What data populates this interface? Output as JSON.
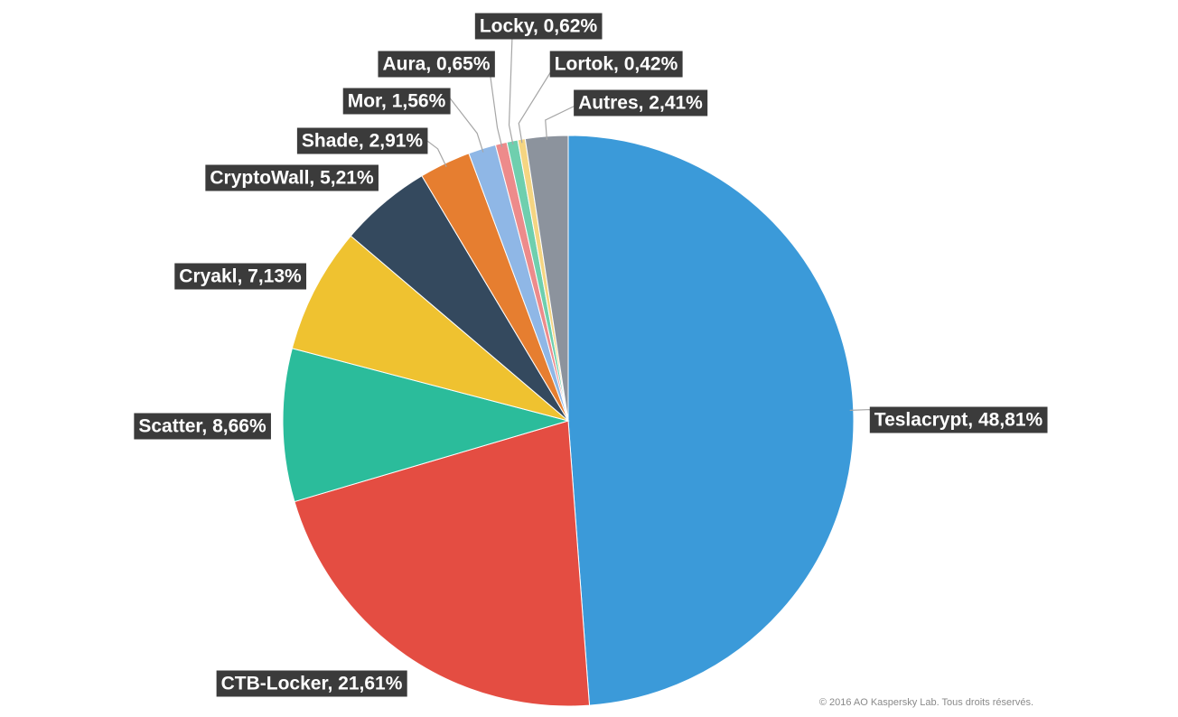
{
  "chart_data": {
    "type": "pie",
    "title": "",
    "start": "top",
    "direction": "clockwise",
    "slices": [
      {
        "name": "Teslacrypt",
        "value": 48.81,
        "label": "Teslacrypt, 48,81%",
        "color": "#3b9ad9"
      },
      {
        "name": "CTB-Locker",
        "value": 21.61,
        "label": "CTB-Locker, 21,61%",
        "color": "#e44d42"
      },
      {
        "name": "Scatter",
        "value": 8.66,
        "label": "Scatter, 8,66%",
        "color": "#2bbc9b"
      },
      {
        "name": "Cryakl",
        "value": 7.13,
        "label": "Cryakl, 7,13%",
        "color": "#efc230"
      },
      {
        "name": "CryptoWall",
        "value": 5.21,
        "label": "CryptoWall, 5,21%",
        "color": "#34495e"
      },
      {
        "name": "Shade",
        "value": 2.91,
        "label": "Shade, 2,91%",
        "color": "#e67e30"
      },
      {
        "name": "Mor",
        "value": 1.56,
        "label": "Mor, 1,56%",
        "color": "#8fb7e6"
      },
      {
        "name": "Aura",
        "value": 0.65,
        "label": "Aura, 0,65%",
        "color": "#ed8b8b"
      },
      {
        "name": "Locky",
        "value": 0.62,
        "label": "Locky, 0,62%",
        "color": "#6fcfae"
      },
      {
        "name": "Lortok",
        "value": 0.42,
        "label": "Lortok, 0,42%",
        "color": "#f5d582"
      },
      {
        "name": "Autres",
        "value": 2.41,
        "label": "Autres, 2,41%",
        "color": "#8c939d"
      }
    ]
  },
  "footer": {
    "copyright": "© 2016 AO Kaspersky Lab. Tous droits réservés."
  }
}
